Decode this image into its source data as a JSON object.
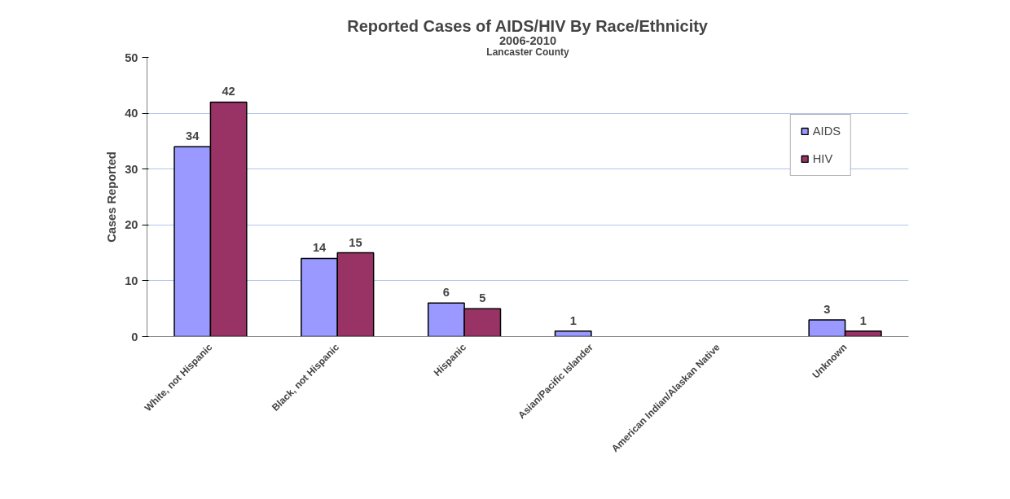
{
  "chart_data": {
    "type": "bar",
    "title": "Reported Cases of AIDS/HIV By Race/Ethnicity",
    "subtitle": "2006-2010",
    "annotations": [
      "Lancaster County"
    ],
    "ylabel": "Cases Reported",
    "categories": [
      "White, not Hispanic",
      "Black, not Hispanic",
      "Hispanic",
      "Asian/Pacific Islander",
      "American Indian/Alaskan Native",
      "Unknown"
    ],
    "series": [
      {
        "name": "AIDS",
        "color": "#9999ff",
        "values": [
          34,
          14,
          6,
          1,
          null,
          3
        ]
      },
      {
        "name": "HIV",
        "color": "#993366",
        "values": [
          42,
          15,
          5,
          null,
          null,
          1
        ]
      }
    ],
    "ylim": [
      0,
      50
    ],
    "yticks": [
      0,
      10,
      20,
      30,
      40,
      50
    ],
    "grid": "y",
    "legend": "top right",
    "data_labels": true
  }
}
